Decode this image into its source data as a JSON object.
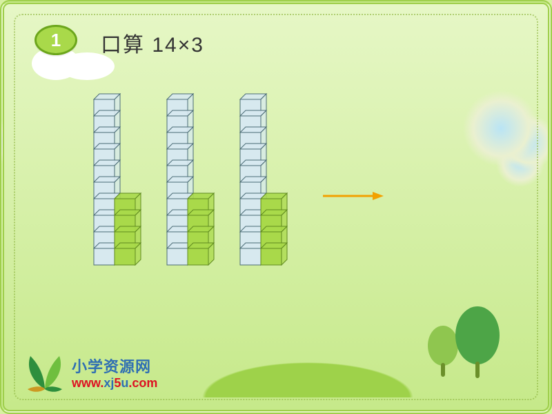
{
  "badge": {
    "number": "1"
  },
  "title": "口算 14×3",
  "towers": {
    "count": 3,
    "tens_height": 10,
    "ones_height": 4,
    "tens_color": "#d7e9ef",
    "tens_stroke": "#4a6b75",
    "ones_color": "#a9d94a",
    "ones_stroke": "#5f8a1f",
    "cube_w": 30,
    "cube_h": 24,
    "top_depth": 8
  },
  "arrow": {
    "color": "#f2a100"
  },
  "logo": {
    "name": "小学资源网",
    "url_red": "www.",
    "url_blue1": "xj",
    "url_red2": "5",
    "url_blue2": "u",
    "url_red3": ".com"
  },
  "palette": {
    "bg_top": "#e6f7c6",
    "bg_bottom": "#c6e98a",
    "frame": "#9fcf4c"
  }
}
